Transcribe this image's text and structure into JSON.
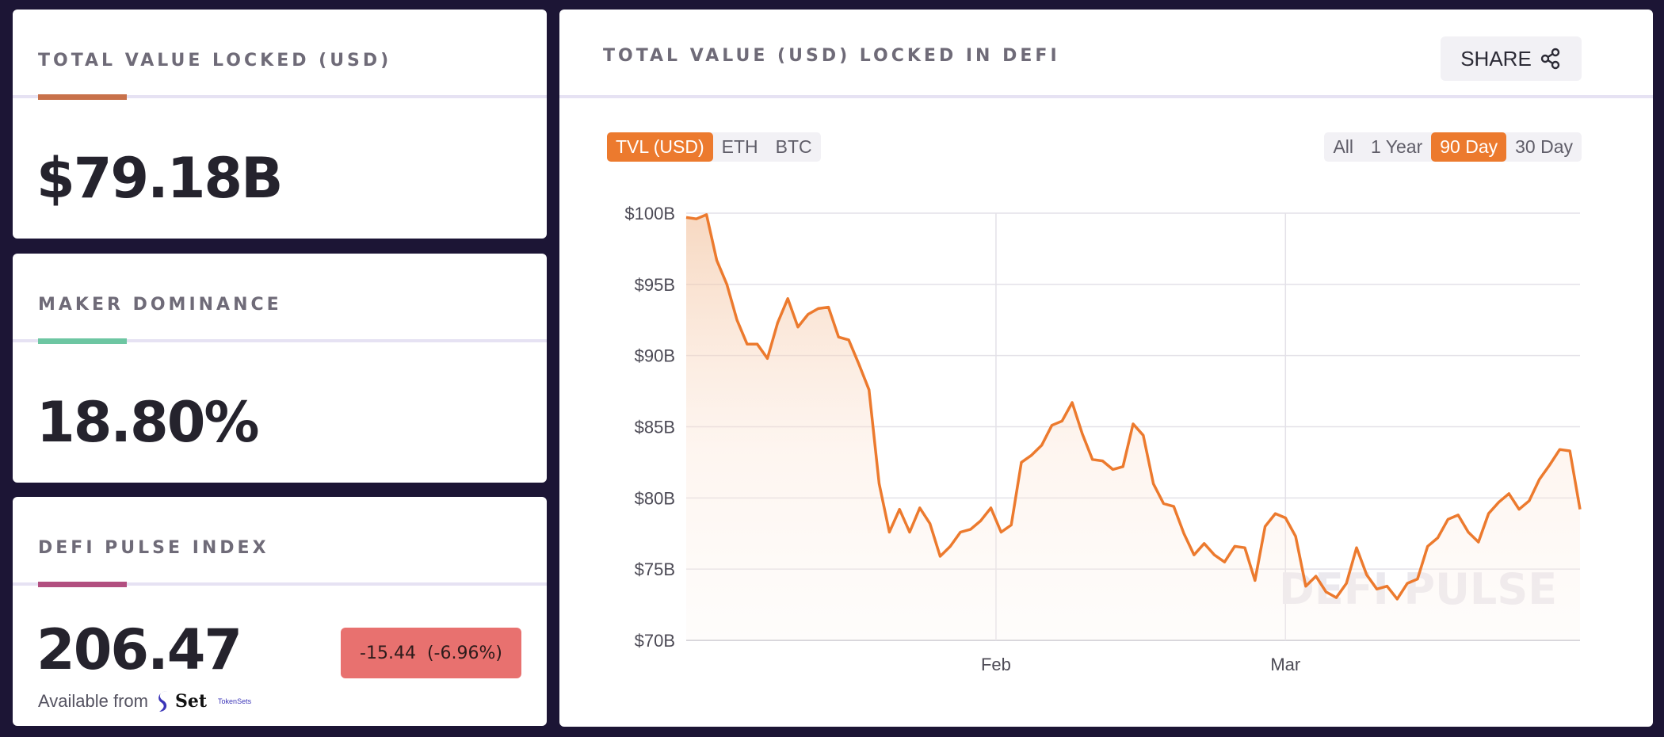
{
  "cards": [
    {
      "label": "TOTAL VALUE LOCKED (USD)",
      "value": "$79.18B",
      "accent": "#c8714a"
    },
    {
      "label": "MAKER DOMINANCE",
      "value": "18.80%",
      "accent": "#6dc6a2"
    },
    {
      "label": "DEFI PULSE INDEX",
      "value": "206.47",
      "accent": "#b24f80",
      "change": "-15.44  (-6.96%)",
      "change_color": "#e8716f",
      "available_label": "Available from",
      "set_brand": "Set",
      "tokensets_label": "TokenSets"
    }
  ],
  "chart_panel": {
    "title": "TOTAL VALUE (USD) LOCKED IN DEFI",
    "share_label": "SHARE",
    "share_icon": "share-icon",
    "metric_options": [
      "TVL (USD)",
      "ETH",
      "BTC"
    ],
    "metric_selected": "TVL (USD)",
    "range_options": [
      "All",
      "1 Year",
      "90 Day",
      "30 Day"
    ],
    "range_selected": "90 Day",
    "accent_color": "#ec7a2e",
    "watermark": "DEFI PULSE"
  },
  "chart_data": {
    "type": "area",
    "title": "",
    "xlabel": "",
    "ylabel": "",
    "y_unit": "billion USD",
    "ylim": [
      70,
      100
    ],
    "y_ticks": [
      100,
      95,
      90,
      85,
      80,
      75,
      70
    ],
    "y_tick_labels": [
      "$100B",
      "$95B",
      "$90B",
      "$85B",
      "$80B",
      "$75B",
      "$70B"
    ],
    "x_tick_labels": [
      "Feb",
      "Mar"
    ],
    "x_tick_index": [
      30.5,
      59
    ],
    "grid": true,
    "legend": "none",
    "series": [
      {
        "color": "#ec7a2e",
        "values": [
          99.7,
          99.6,
          99.9,
          96.7,
          95.0,
          92.5,
          90.8,
          90.8,
          89.8,
          92.3,
          94.0,
          92.0,
          92.9,
          93.3,
          93.4,
          91.3,
          91.1,
          89.4,
          87.6,
          81.0,
          77.6,
          79.2,
          77.6,
          79.3,
          78.2,
          75.9,
          76.6,
          77.6,
          77.8,
          78.4,
          79.3,
          77.6,
          78.1,
          82.5,
          83.0,
          83.7,
          85.1,
          85.4,
          86.7,
          84.5,
          82.7,
          82.6,
          82.0,
          82.2,
          85.2,
          84.4,
          81.0,
          79.6,
          79.4,
          77.5,
          76.0,
          76.8,
          76.0,
          75.5,
          76.6,
          76.5,
          74.2,
          78.0,
          78.9,
          78.6,
          77.3,
          73.8,
          74.5,
          73.4,
          73.0,
          74.0,
          76.5,
          74.6,
          73.6,
          73.8,
          72.9,
          74.0,
          74.3,
          76.6,
          77.2,
          78.5,
          78.8,
          77.6,
          76.9,
          78.9,
          79.7,
          80.3,
          79.2,
          79.8,
          81.3,
          82.3,
          83.4,
          83.3,
          79.2
        ]
      }
    ]
  }
}
